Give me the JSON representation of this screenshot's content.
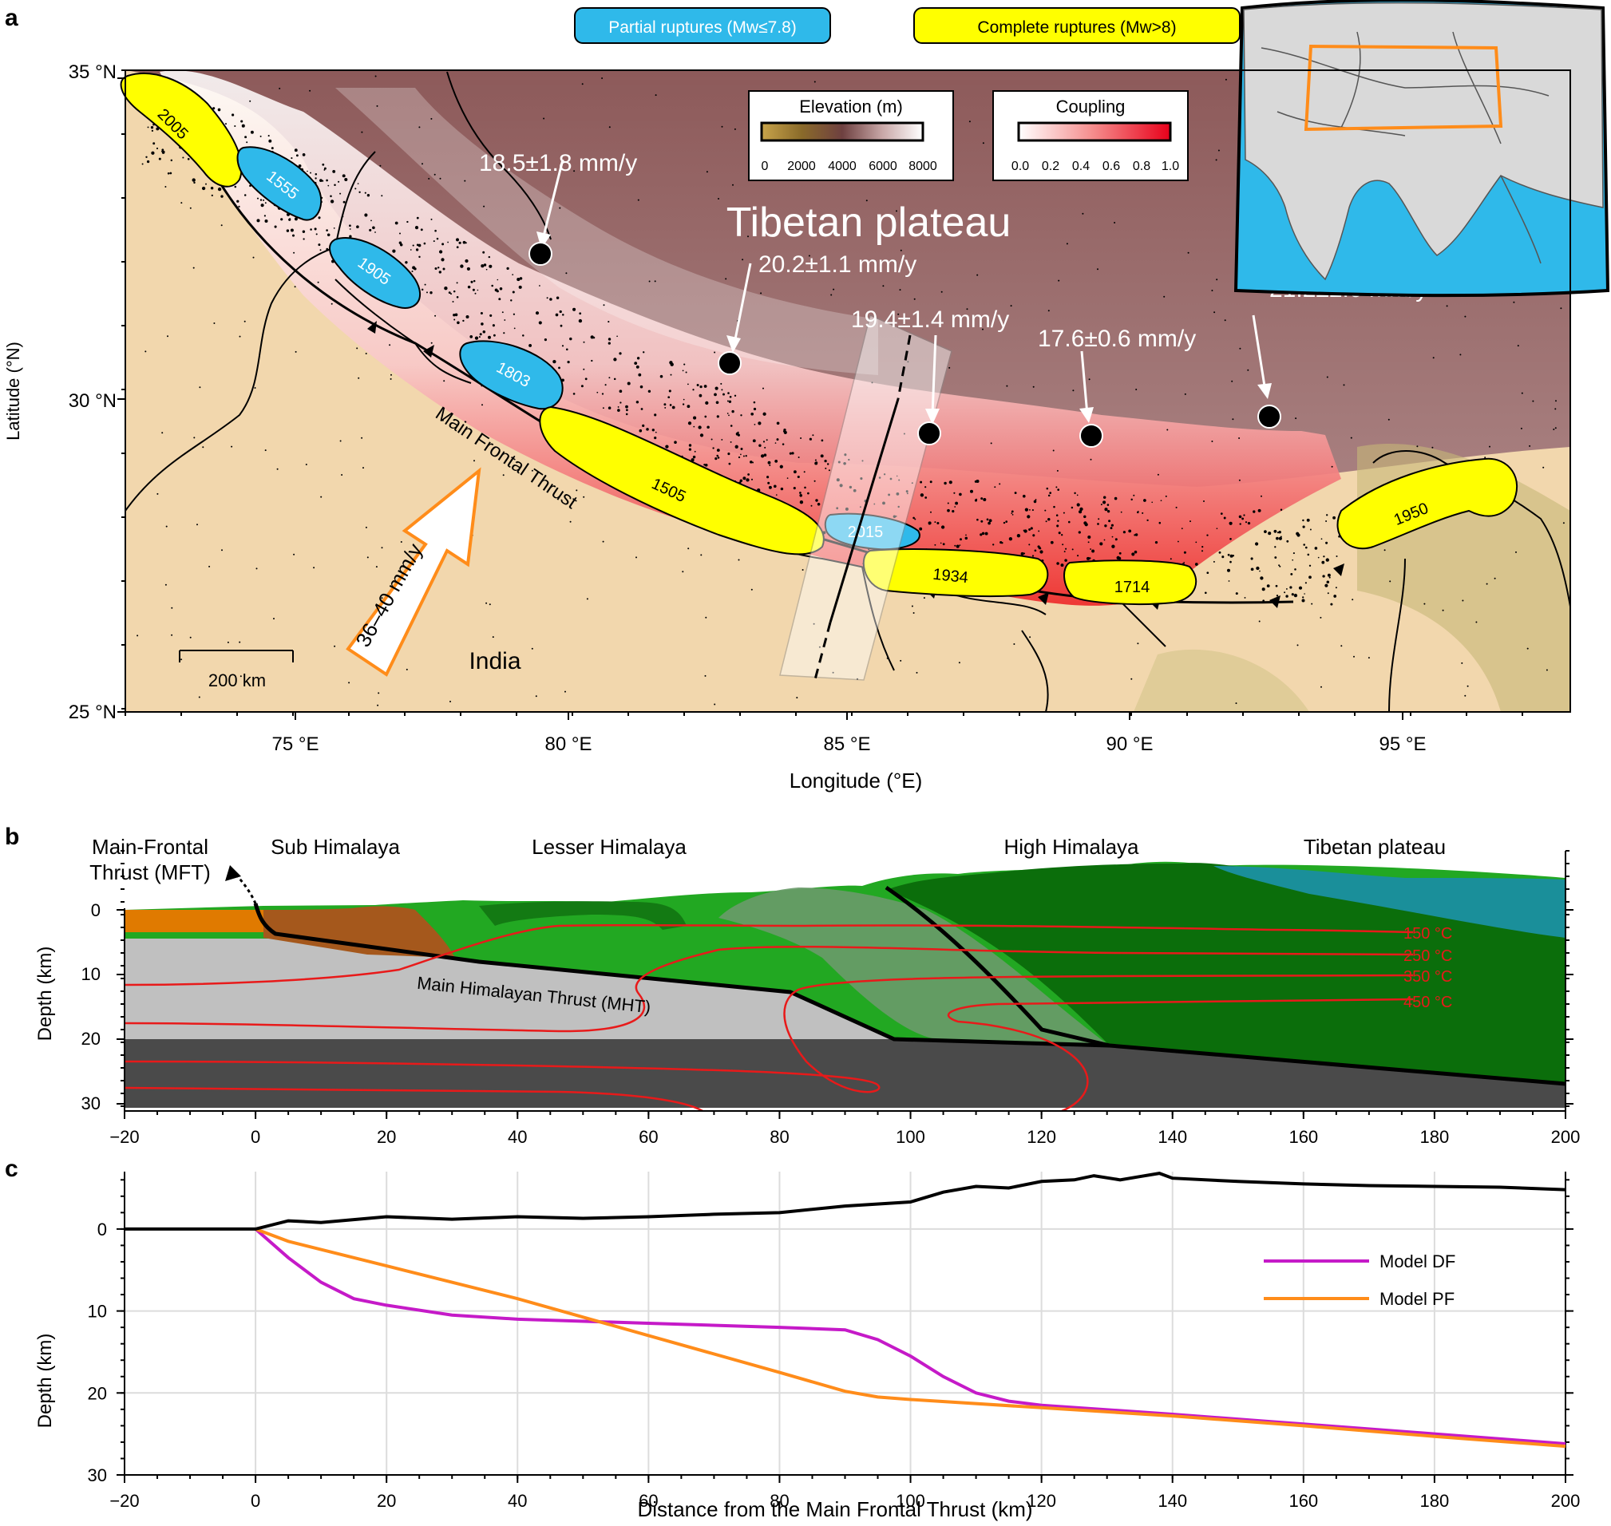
{
  "panel_a": {
    "label": "a",
    "legend_partial": "Partial ruptures (Mw≤7.8)",
    "legend_complete": "Complete ruptures (Mw>8)",
    "legend_partial_color": "#2fb9ea",
    "legend_complete_color": "#ffff00",
    "elevation_title": "Elevation (m)",
    "elevation_ticks": [
      "0",
      "2000",
      "4000",
      "6000",
      "8000"
    ],
    "coupling_title": "Coupling",
    "coupling_ticks": [
      "0.0",
      "0.2",
      "0.4",
      "0.6",
      "0.8",
      "1.0"
    ],
    "lat_ticks": [
      "35 °N",
      "30 °N",
      "25 °N"
    ],
    "lon_ticks": [
      "75 °E",
      "80 °E",
      "85 °E",
      "90 °E",
      "95 °E"
    ],
    "ylabel": "Latitude (°N)",
    "xlabel": "Longitude (°E)",
    "label_tibetan_plateau": "Tibetan plateau",
    "label_india": "India",
    "label_mft": "Main Frontal Thrust",
    "label_convergence": "36–40 mm/y",
    "scale_bar": "200 km",
    "gps_rates": [
      "18.5±1.8 mm/y",
      "20.2±1.1 mm/y",
      "19.4±1.4 mm/y",
      "17.6±0.6 mm/y",
      "21.2±2.0 mm/y"
    ],
    "ruptures_partial": [
      "1555",
      "1905",
      "1803",
      "2015"
    ],
    "ruptures_complete": [
      "2005",
      "1505",
      "1934",
      "1714",
      "1950"
    ]
  },
  "panel_b": {
    "label": "b",
    "region_labels": [
      "Main-Frontal",
      "Thrust (MFT)",
      "Sub Himalaya",
      "Lesser Himalaya",
      "High Himalaya",
      "Tibetan plateau"
    ],
    "mht_label": "Main Himalayan Thrust (MHT)",
    "isotherms": [
      "150 °C",
      "250 °C",
      "350 °C",
      "450 °C"
    ],
    "ylabel": "Depth (km)",
    "y_ticks": [
      "0",
      "10",
      "20",
      "30"
    ],
    "x_ticks": [
      "−20",
      "0",
      "20",
      "40",
      "60",
      "80",
      "100",
      "120",
      "140",
      "160",
      "180",
      "200"
    ]
  },
  "panel_c": {
    "label": "c",
    "ylabel": "Depth (km)",
    "xlabel": "Distance from the Main Frontal Thrust (km)",
    "legend": [
      "Model DF",
      "Model PF"
    ],
    "colors": {
      "df": "#c51ac8",
      "pf": "#ff8c1a",
      "topo": "#000000"
    }
  },
  "chart_data": {
    "type": "line",
    "xlabel": "Distance from the Main Frontal Thrust (km)",
    "ylabel": "Depth (km)",
    "xlim": [
      -20,
      200
    ],
    "ylim": [
      30,
      -7
    ],
    "x_ticks": [
      -20,
      0,
      20,
      40,
      60,
      80,
      100,
      120,
      140,
      160,
      180,
      200
    ],
    "y_ticks": [
      0,
      10,
      20,
      30
    ],
    "grid": true,
    "legend_position": "top-right",
    "series": [
      {
        "name": "Model DF",
        "x": [
          0,
          5,
          10,
          15,
          20,
          30,
          40,
          60,
          80,
          90,
          95,
          100,
          105,
          110,
          115,
          120,
          140,
          160,
          180,
          200
        ],
        "y": [
          0,
          3.5,
          6.5,
          8.5,
          9.3,
          10.5,
          11,
          11.5,
          12,
          12.3,
          13.5,
          15.5,
          18,
          20,
          21,
          21.5,
          22.6,
          23.8,
          25,
          26.2
        ]
      },
      {
        "name": "Model PF",
        "x": [
          0,
          5,
          20,
          40,
          60,
          80,
          90,
          95,
          100,
          120,
          140,
          160,
          180,
          200
        ],
        "y": [
          0,
          1.5,
          4.5,
          8.5,
          13,
          17.5,
          19.8,
          20.5,
          20.8,
          21.8,
          22.8,
          24,
          25.3,
          26.5
        ]
      },
      {
        "x": [
          -20,
          -10,
          0,
          5,
          10,
          20,
          30,
          40,
          50,
          60,
          70,
          80,
          90,
          100,
          105,
          110,
          115,
          120,
          125,
          128,
          132,
          135,
          138,
          140,
          150,
          160,
          170,
          180,
          190,
          200
        ],
        "y": [
          0,
          0,
          0,
          -1,
          -0.8,
          -1.5,
          -1.2,
          -1.5,
          -1.3,
          -1.5,
          -1.8,
          -2,
          -2.8,
          -3.3,
          -4.5,
          -5.2,
          -5,
          -5.8,
          -6,
          -6.5,
          -6,
          -6.4,
          -6.8,
          -6.2,
          -5.8,
          -5.5,
          -5.3,
          -5.2,
          -5.1,
          -4.8
        ]
      }
    ]
  }
}
